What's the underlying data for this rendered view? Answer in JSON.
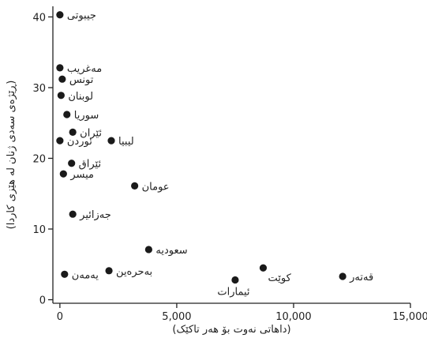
{
  "chart_data": {
    "type": "scatter",
    "xlabel": "(داهاتی نەوت بۆ هەر تاکێک)",
    "ylabel": "(ڕێژەی سەدی ژنان لە هێزی کاردا)",
    "xlim": [
      -300,
      15000
    ],
    "ylim": [
      -0.5,
      41.5
    ],
    "x_ticks": [
      0,
      5000,
      10000,
      15000
    ],
    "x_tick_labels": [
      "0",
      "5,000",
      "10,000",
      "15,000"
    ],
    "y_ticks": [
      0,
      10,
      20,
      30,
      40
    ],
    "y_tick_labels": [
      "0",
      "10",
      "20",
      "30",
      "40"
    ],
    "grid": false,
    "points": [
      {
        "label": "جیبوتی",
        "x": 0,
        "y": 40.3
      },
      {
        "label": "مەغریب",
        "x": 0,
        "y": 32.8
      },
      {
        "label": "تونس",
        "x": 100,
        "y": 31.2
      },
      {
        "label": "لوبنان",
        "x": 50,
        "y": 28.9
      },
      {
        "label": "سوریا",
        "x": 300,
        "y": 26.2
      },
      {
        "label": "ئێران",
        "x": 550,
        "y": 23.7
      },
      {
        "label": "ئوردن",
        "x": 0,
        "y": 22.5
      },
      {
        "label": "لیبیا",
        "x": 2200,
        "y": 22.5
      },
      {
        "label": "ئێراق",
        "x": 500,
        "y": 19.3
      },
      {
        "label": "میسر",
        "x": 150,
        "y": 17.8
      },
      {
        "label": "عومان",
        "x": 3200,
        "y": 16.1
      },
      {
        "label": "جەزائیر",
        "x": 550,
        "y": 12.1
      },
      {
        "label": "سعودیە",
        "x": 3800,
        "y": 7.1
      },
      {
        "label": "بەحرەین",
        "x": 2100,
        "y": 4.1
      },
      {
        "label": "یەمەن",
        "x": 200,
        "y": 3.6
      },
      {
        "label": "کوێت",
        "x": 8700,
        "y": 4.5
      },
      {
        "label": "ئیمارات",
        "x": 7500,
        "y": 2.8
      },
      {
        "label": "قەتەر",
        "x": 12100,
        "y": 3.3
      }
    ]
  }
}
